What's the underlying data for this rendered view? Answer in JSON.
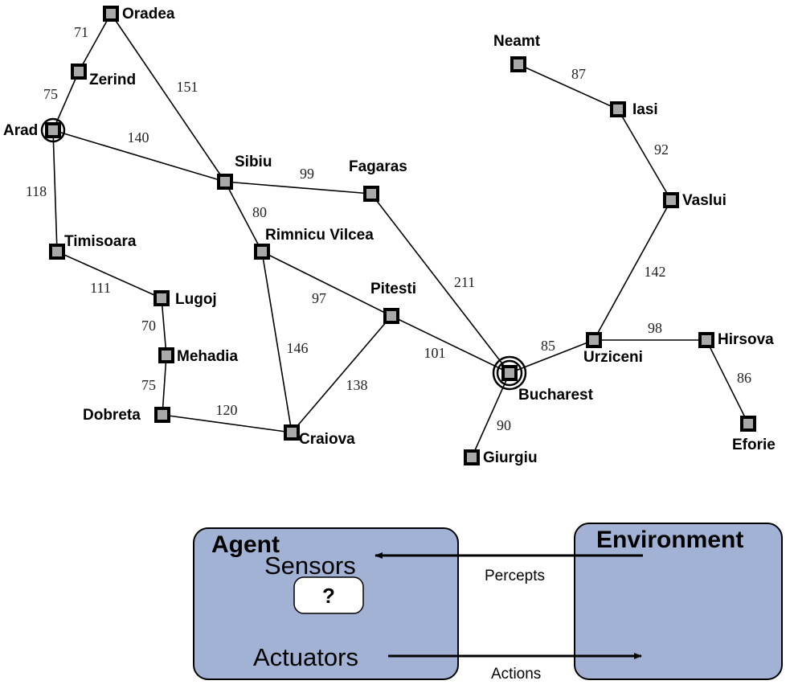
{
  "map": {
    "cities": [
      {
        "id": "oradea",
        "name": "Oradea"
      },
      {
        "id": "zerind",
        "name": "Zerind"
      },
      {
        "id": "arad",
        "name": "Arad"
      },
      {
        "id": "timisoara",
        "name": "Timisoara"
      },
      {
        "id": "lugoj",
        "name": "Lugoj"
      },
      {
        "id": "mehadia",
        "name": "Mehadia"
      },
      {
        "id": "dobreta",
        "name": "Dobreta"
      },
      {
        "id": "craiova",
        "name": "Craiova"
      },
      {
        "id": "sibiu",
        "name": "Sibiu"
      },
      {
        "id": "rimnicu",
        "name": "Rimnicu Vilcea"
      },
      {
        "id": "fagaras",
        "name": "Fagaras"
      },
      {
        "id": "pitesti",
        "name": "Pitesti"
      },
      {
        "id": "bucharest",
        "name": "Bucharest"
      },
      {
        "id": "giurgiu",
        "name": "Giurgiu"
      },
      {
        "id": "urziceni",
        "name": "Urziceni"
      },
      {
        "id": "hirsova",
        "name": "Hirsova"
      },
      {
        "id": "eforie",
        "name": "Eforie"
      },
      {
        "id": "vaslui",
        "name": "Vaslui"
      },
      {
        "id": "iasi",
        "name": "Iasi"
      },
      {
        "id": "neamt",
        "name": "Neamt"
      }
    ],
    "roads": [
      {
        "from": "oradea",
        "to": "zerind",
        "distance": "71"
      },
      {
        "from": "zerind",
        "to": "arad",
        "distance": "75"
      },
      {
        "from": "oradea",
        "to": "sibiu",
        "distance": "151"
      },
      {
        "from": "arad",
        "to": "sibiu",
        "distance": "140"
      },
      {
        "from": "arad",
        "to": "timisoara",
        "distance": "118"
      },
      {
        "from": "timisoara",
        "to": "lugoj",
        "distance": "111"
      },
      {
        "from": "lugoj",
        "to": "mehadia",
        "distance": "70"
      },
      {
        "from": "mehadia",
        "to": "dobreta",
        "distance": "75"
      },
      {
        "from": "dobreta",
        "to": "craiova",
        "distance": "120"
      },
      {
        "from": "sibiu",
        "to": "fagaras",
        "distance": "99"
      },
      {
        "from": "sibiu",
        "to": "rimnicu",
        "distance": "80"
      },
      {
        "from": "rimnicu",
        "to": "pitesti",
        "distance": "97"
      },
      {
        "from": "rimnicu",
        "to": "craiova",
        "distance": "146"
      },
      {
        "from": "craiova",
        "to": "pitesti",
        "distance": "138"
      },
      {
        "from": "fagaras",
        "to": "bucharest",
        "distance": "211"
      },
      {
        "from": "pitesti",
        "to": "bucharest",
        "distance": "101"
      },
      {
        "from": "bucharest",
        "to": "giurgiu",
        "distance": "90"
      },
      {
        "from": "bucharest",
        "to": "urziceni",
        "distance": "85"
      },
      {
        "from": "urziceni",
        "to": "hirsova",
        "distance": "98"
      },
      {
        "from": "hirsova",
        "to": "eforie",
        "distance": "86"
      },
      {
        "from": "urziceni",
        "to": "vaslui",
        "distance": "142"
      },
      {
        "from": "vaslui",
        "to": "iasi",
        "distance": "92"
      },
      {
        "from": "iasi",
        "to": "neamt",
        "distance": "87"
      }
    ],
    "start_city": "arad",
    "goal_city": "bucharest"
  },
  "agent_diagram": {
    "agent_title": "Agent",
    "sensors_label": "Sensors",
    "unknown_label": "?",
    "actuators_label": "Actuators",
    "environment_title": "Environment",
    "percepts_label": "Percepts",
    "actions_label": "Actions",
    "box_color": "#a2b2d4"
  }
}
